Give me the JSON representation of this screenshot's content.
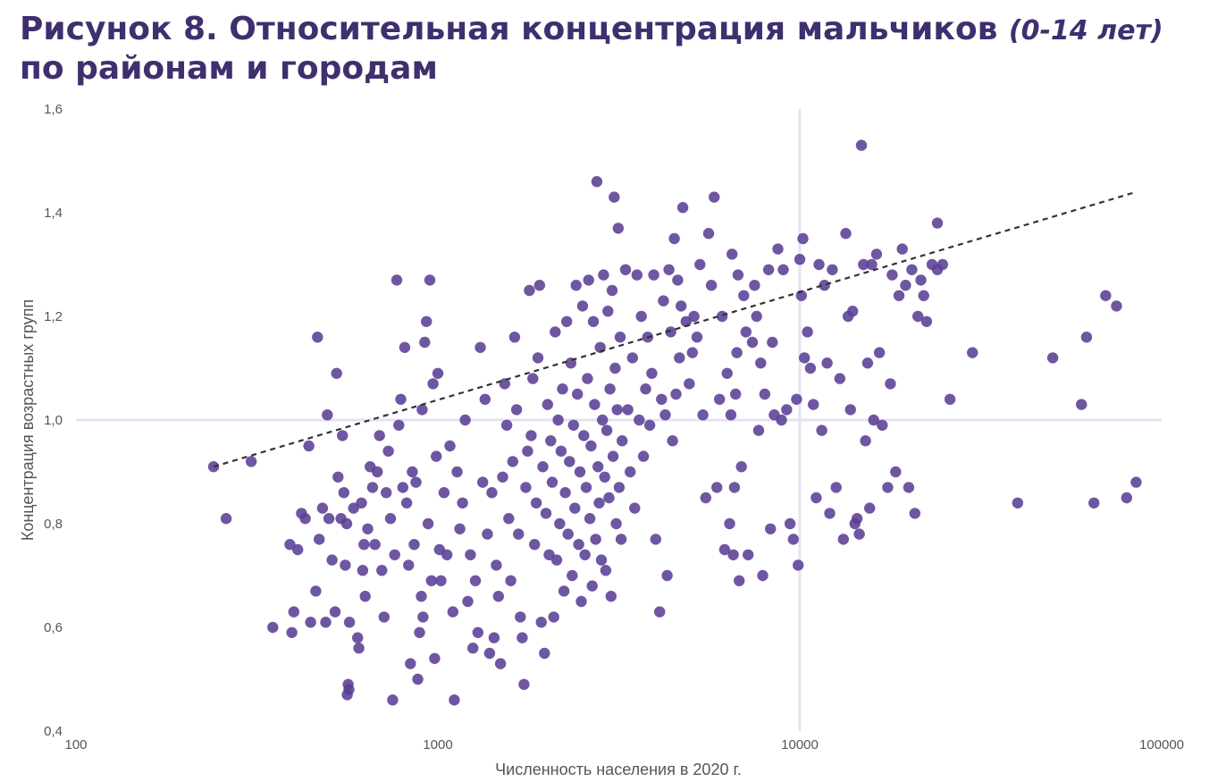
{
  "title": {
    "main": "Рисунок 8. Относительная концентрация мальчиков",
    "italic": "(0-14 лет)",
    "line2": "по районам и городам"
  },
  "chart_data": {
    "type": "scatter",
    "xlabel": "Численность населения в 2020 г.",
    "ylabel": "Концентрация возрастных групп",
    "xscale": "log",
    "xlim": [
      100,
      100000
    ],
    "ylim": [
      0.4,
      1.6
    ],
    "xticks": [
      "100",
      "1000",
      "10000",
      "100000"
    ],
    "yticks": [
      "0,4",
      "0,6",
      "0,8",
      "1,0",
      "1,2",
      "1,4",
      "1,6"
    ],
    "reference_lines": {
      "x": 10000,
      "y": 1.0
    },
    "trend_line": {
      "style": "dashed",
      "color": "#333333",
      "from": [
        240,
        0.91
      ],
      "to": [
        85000,
        1.44
      ]
    },
    "point_color": "#5b3f95",
    "points": [
      [
        240,
        0.91
      ],
      [
        260,
        0.81
      ],
      [
        305,
        0.92
      ],
      [
        350,
        0.6
      ],
      [
        390,
        0.76
      ],
      [
        400,
        0.63
      ],
      [
        395,
        0.59
      ],
      [
        410,
        0.75
      ],
      [
        420,
        0.82
      ],
      [
        430,
        0.81
      ],
      [
        440,
        0.95
      ],
      [
        445,
        0.61
      ],
      [
        460,
        0.67
      ],
      [
        465,
        1.16
      ],
      [
        470,
        0.77
      ],
      [
        480,
        0.83
      ],
      [
        490,
        0.61
      ],
      [
        495,
        1.01
      ],
      [
        500,
        0.81
      ],
      [
        510,
        0.73
      ],
      [
        520,
        0.63
      ],
      [
        525,
        1.09
      ],
      [
        530,
        0.89
      ],
      [
        540,
        0.81
      ],
      [
        545,
        0.97
      ],
      [
        550,
        0.86
      ],
      [
        555,
        0.72
      ],
      [
        560,
        0.8
      ],
      [
        562,
        0.47
      ],
      [
        565,
        0.49
      ],
      [
        568,
        0.48
      ],
      [
        570,
        0.61
      ],
      [
        585,
        0.83
      ],
      [
        600,
        0.58
      ],
      [
        605,
        0.56
      ],
      [
        615,
        0.84
      ],
      [
        620,
        0.71
      ],
      [
        625,
        0.76
      ],
      [
        630,
        0.66
      ],
      [
        640,
        0.79
      ],
      [
        650,
        0.91
      ],
      [
        660,
        0.87
      ],
      [
        670,
        0.76
      ],
      [
        680,
        0.9
      ],
      [
        690,
        0.97
      ],
      [
        700,
        0.71
      ],
      [
        710,
        0.62
      ],
      [
        720,
        0.86
      ],
      [
        730,
        0.94
      ],
      [
        740,
        0.81
      ],
      [
        750,
        0.46
      ],
      [
        760,
        0.74
      ],
      [
        770,
        1.27
      ],
      [
        780,
        0.99
      ],
      [
        790,
        1.04
      ],
      [
        800,
        0.87
      ],
      [
        810,
        1.14
      ],
      [
        820,
        0.84
      ],
      [
        830,
        0.72
      ],
      [
        840,
        0.53
      ],
      [
        850,
        0.9
      ],
      [
        860,
        0.76
      ],
      [
        870,
        0.88
      ],
      [
        880,
        0.5
      ],
      [
        890,
        0.59
      ],
      [
        900,
        0.66
      ],
      [
        905,
        1.02
      ],
      [
        910,
        0.62
      ],
      [
        920,
        1.15
      ],
      [
        930,
        1.19
      ],
      [
        940,
        0.8
      ],
      [
        950,
        1.27
      ],
      [
        960,
        0.69
      ],
      [
        970,
        1.07
      ],
      [
        980,
        0.54
      ],
      [
        990,
        0.93
      ],
      [
        1000,
        1.09
      ],
      [
        1010,
        0.75
      ],
      [
        1020,
        0.69
      ],
      [
        1040,
        0.86
      ],
      [
        1060,
        0.74
      ],
      [
        1080,
        0.95
      ],
      [
        1100,
        0.63
      ],
      [
        1110,
        0.46
      ],
      [
        1130,
        0.9
      ],
      [
        1150,
        0.79
      ],
      [
        1170,
        0.84
      ],
      [
        1190,
        1.0
      ],
      [
        1210,
        0.65
      ],
      [
        1230,
        0.74
      ],
      [
        1250,
        0.56
      ],
      [
        1270,
        0.69
      ],
      [
        1290,
        0.59
      ],
      [
        1310,
        1.14
      ],
      [
        1330,
        0.88
      ],
      [
        1350,
        1.04
      ],
      [
        1370,
        0.78
      ],
      [
        1390,
        0.55
      ],
      [
        1410,
        0.86
      ],
      [
        1430,
        0.58
      ],
      [
        1450,
        0.72
      ],
      [
        1470,
        0.66
      ],
      [
        1490,
        0.53
      ],
      [
        1510,
        0.89
      ],
      [
        1530,
        1.07
      ],
      [
        1550,
        0.99
      ],
      [
        1570,
        0.81
      ],
      [
        1590,
        0.69
      ],
      [
        1610,
        0.92
      ],
      [
        1630,
        1.16
      ],
      [
        1650,
        1.02
      ],
      [
        1670,
        0.78
      ],
      [
        1690,
        0.62
      ],
      [
        1710,
        0.58
      ],
      [
        1730,
        0.49
      ],
      [
        1750,
        0.87
      ],
      [
        1770,
        0.94
      ],
      [
        1790,
        1.25
      ],
      [
        1810,
        0.97
      ],
      [
        1830,
        1.08
      ],
      [
        1850,
        0.76
      ],
      [
        1870,
        0.84
      ],
      [
        1890,
        1.12
      ],
      [
        1910,
        1.26
      ],
      [
        1930,
        0.61
      ],
      [
        1950,
        0.91
      ],
      [
        1970,
        0.55
      ],
      [
        1990,
        0.82
      ],
      [
        2010,
        1.03
      ],
      [
        2030,
        0.74
      ],
      [
        2050,
        0.96
      ],
      [
        2070,
        0.88
      ],
      [
        2090,
        0.62
      ],
      [
        2110,
        1.17
      ],
      [
        2130,
        0.73
      ],
      [
        2150,
        1.0
      ],
      [
        2170,
        0.8
      ],
      [
        2190,
        0.94
      ],
      [
        2210,
        1.06
      ],
      [
        2230,
        0.67
      ],
      [
        2250,
        0.86
      ],
      [
        2270,
        1.19
      ],
      [
        2290,
        0.78
      ],
      [
        2310,
        0.92
      ],
      [
        2330,
        1.11
      ],
      [
        2350,
        0.7
      ],
      [
        2370,
        0.99
      ],
      [
        2390,
        0.83
      ],
      [
        2410,
        1.26
      ],
      [
        2430,
        1.05
      ],
      [
        2450,
        0.76
      ],
      [
        2470,
        0.9
      ],
      [
        2490,
        0.65
      ],
      [
        2510,
        1.22
      ],
      [
        2530,
        0.97
      ],
      [
        2550,
        0.74
      ],
      [
        2570,
        0.87
      ],
      [
        2590,
        1.08
      ],
      [
        2610,
        1.27
      ],
      [
        2630,
        0.81
      ],
      [
        2650,
        0.95
      ],
      [
        2670,
        0.68
      ],
      [
        2690,
        1.19
      ],
      [
        2710,
        1.03
      ],
      [
        2730,
        0.77
      ],
      [
        2750,
        1.46
      ],
      [
        2770,
        0.91
      ],
      [
        2790,
        0.84
      ],
      [
        2810,
        1.14
      ],
      [
        2830,
        0.73
      ],
      [
        2850,
        1.0
      ],
      [
        2870,
        1.28
      ],
      [
        2890,
        0.89
      ],
      [
        2910,
        0.71
      ],
      [
        2930,
        0.98
      ],
      [
        2950,
        1.21
      ],
      [
        2970,
        0.85
      ],
      [
        2990,
        1.06
      ],
      [
        3010,
        0.66
      ],
      [
        3030,
        1.25
      ],
      [
        3050,
        0.93
      ],
      [
        3070,
        1.43
      ],
      [
        3090,
        1.1
      ],
      [
        3110,
        0.8
      ],
      [
        3130,
        1.02
      ],
      [
        3150,
        1.37
      ],
      [
        3170,
        0.87
      ],
      [
        3190,
        1.16
      ],
      [
        3210,
        0.77
      ],
      [
        3230,
        0.96
      ],
      [
        3300,
        1.29
      ],
      [
        3350,
        1.02
      ],
      [
        3400,
        0.9
      ],
      [
        3450,
        1.12
      ],
      [
        3500,
        0.83
      ],
      [
        3550,
        1.28
      ],
      [
        3600,
        1.0
      ],
      [
        3650,
        1.2
      ],
      [
        3700,
        0.93
      ],
      [
        3750,
        1.06
      ],
      [
        3800,
        1.16
      ],
      [
        3850,
        0.99
      ],
      [
        3900,
        1.09
      ],
      [
        3950,
        1.28
      ],
      [
        4000,
        0.77
      ],
      [
        4100,
        0.63
      ],
      [
        4150,
        1.04
      ],
      [
        4200,
        1.23
      ],
      [
        4250,
        1.01
      ],
      [
        4300,
        0.7
      ],
      [
        4350,
        1.29
      ],
      [
        4400,
        1.17
      ],
      [
        4450,
        0.96
      ],
      [
        4500,
        1.35
      ],
      [
        4550,
        1.05
      ],
      [
        4600,
        1.27
      ],
      [
        4650,
        1.12
      ],
      [
        4700,
        1.22
      ],
      [
        4750,
        1.41
      ],
      [
        4850,
        1.19
      ],
      [
        4950,
        1.07
      ],
      [
        5050,
        1.13
      ],
      [
        5100,
        1.2
      ],
      [
        5200,
        1.16
      ],
      [
        5300,
        1.3
      ],
      [
        5400,
        1.01
      ],
      [
        5500,
        0.85
      ],
      [
        5600,
        1.36
      ],
      [
        5700,
        1.26
      ],
      [
        5800,
        1.43
      ],
      [
        5900,
        0.87
      ],
      [
        6000,
        1.04
      ],
      [
        6100,
        1.2
      ],
      [
        6200,
        0.75
      ],
      [
        6300,
        1.09
      ],
      [
        6400,
        0.8
      ],
      [
        6450,
        1.01
      ],
      [
        6500,
        1.32
      ],
      [
        6550,
        0.74
      ],
      [
        6600,
        0.87
      ],
      [
        6650,
        1.05
      ],
      [
        6700,
        1.13
      ],
      [
        6750,
        1.28
      ],
      [
        6800,
        0.69
      ],
      [
        6900,
        0.91
      ],
      [
        7000,
        1.24
      ],
      [
        7100,
        1.17
      ],
      [
        7200,
        0.74
      ],
      [
        7400,
        1.15
      ],
      [
        7500,
        1.26
      ],
      [
        7600,
        1.2
      ],
      [
        7700,
        0.98
      ],
      [
        7800,
        1.11
      ],
      [
        7900,
        0.7
      ],
      [
        8000,
        1.05
      ],
      [
        8200,
        1.29
      ],
      [
        8300,
        0.79
      ],
      [
        8400,
        1.15
      ],
      [
        8500,
        1.01
      ],
      [
        8700,
        1.33
      ],
      [
        8900,
        1.0
      ],
      [
        9000,
        1.29
      ],
      [
        9200,
        1.02
      ],
      [
        9400,
        0.8
      ],
      [
        9600,
        0.77
      ],
      [
        9800,
        1.04
      ],
      [
        9900,
        0.72
      ],
      [
        10000,
        1.31
      ],
      [
        10100,
        1.24
      ],
      [
        10200,
        1.35
      ],
      [
        10300,
        1.12
      ],
      [
        10500,
        1.17
      ],
      [
        10700,
        1.1
      ],
      [
        10900,
        1.03
      ],
      [
        11100,
        0.85
      ],
      [
        11300,
        1.3
      ],
      [
        11500,
        0.98
      ],
      [
        11700,
        1.26
      ],
      [
        11900,
        1.11
      ],
      [
        12100,
        0.82
      ],
      [
        12300,
        1.29
      ],
      [
        12600,
        0.87
      ],
      [
        12900,
        1.08
      ],
      [
        13200,
        0.77
      ],
      [
        13400,
        1.36
      ],
      [
        13600,
        1.2
      ],
      [
        13800,
        1.02
      ],
      [
        14000,
        1.21
      ],
      [
        14200,
        0.8
      ],
      [
        14400,
        0.81
      ],
      [
        14600,
        0.78
      ],
      [
        14800,
        1.53
      ],
      [
        15000,
        1.3
      ],
      [
        15200,
        0.96
      ],
      [
        15400,
        1.11
      ],
      [
        15600,
        0.83
      ],
      [
        15800,
        1.3
      ],
      [
        16000,
        1.0
      ],
      [
        16300,
        1.32
      ],
      [
        16600,
        1.13
      ],
      [
        16900,
        0.99
      ],
      [
        17500,
        0.87
      ],
      [
        17800,
        1.07
      ],
      [
        18000,
        1.28
      ],
      [
        18400,
        0.9
      ],
      [
        18800,
        1.24
      ],
      [
        19200,
        1.33
      ],
      [
        19600,
        1.26
      ],
      [
        20000,
        0.87
      ],
      [
        20400,
        1.29
      ],
      [
        20800,
        0.82
      ],
      [
        21200,
        1.2
      ],
      [
        21600,
        1.27
      ],
      [
        22000,
        1.24
      ],
      [
        22400,
        1.19
      ],
      [
        23200,
        1.3
      ],
      [
        24000,
        1.38
      ],
      [
        24800,
        1.3
      ],
      [
        26000,
        1.04
      ],
      [
        30000,
        1.13
      ],
      [
        40000,
        0.84
      ],
      [
        50000,
        1.12
      ],
      [
        60000,
        1.03
      ],
      [
        62000,
        1.16
      ],
      [
        65000,
        0.84
      ],
      [
        70000,
        1.24
      ],
      [
        75000,
        1.22
      ],
      [
        80000,
        0.85
      ],
      [
        85000,
        0.88
      ],
      [
        24000,
        1.29
      ]
    ]
  }
}
